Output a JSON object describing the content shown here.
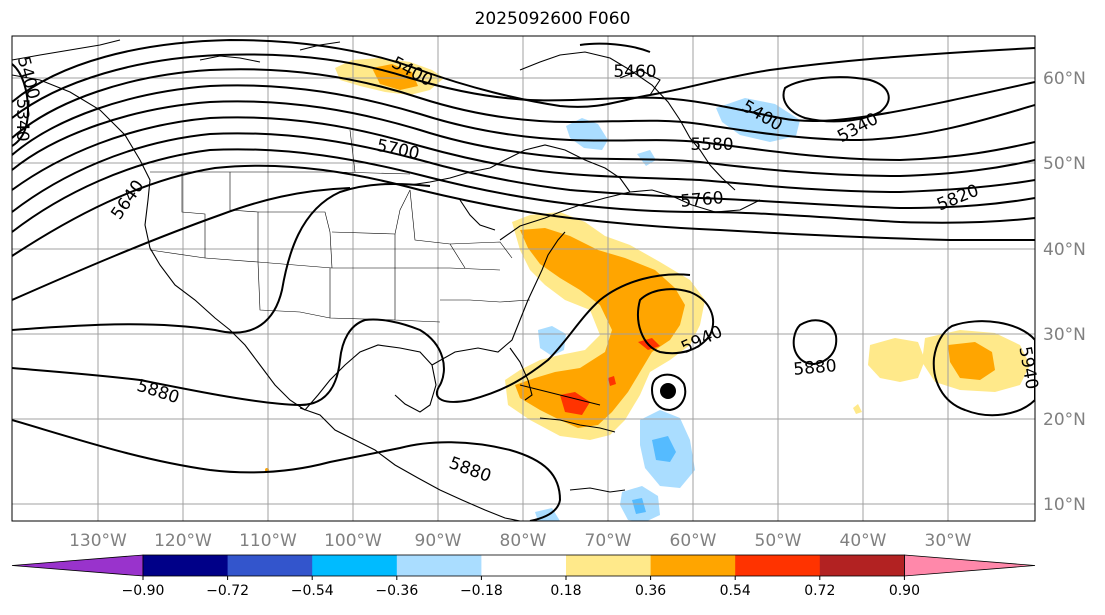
{
  "title": "2025092600 F060",
  "longitude_labels": [
    "130°W",
    "120°W",
    "110°W",
    "100°W",
    "90°W",
    "80°W",
    "70°W",
    "60°W",
    "50°W",
    "40°W",
    "30°W"
  ],
  "latitude_labels": [
    "60°N",
    "50°N",
    "40°N",
    "30°N",
    "20°N",
    "10°N"
  ],
  "colorbar": {
    "colors": [
      "#9933cc",
      "#000088",
      "#3355cc",
      "#00bbff",
      "#aaddff",
      "#ffffff",
      "#ffe98a",
      "#ffa500",
      "#ff3300",
      "#b22222",
      "#ff88aa"
    ],
    "tick_labels": [
      "−0.90",
      "−0.72",
      "−0.54",
      "−0.36",
      "−0.18",
      "0.18",
      "0.36",
      "0.54",
      "0.72",
      "0.90"
    ]
  },
  "contour_labels": [
    "5400",
    "5460",
    "5400",
    "5340",
    "5700",
    "5580",
    "5760",
    "5820",
    "5640",
    "5340",
    "5400",
    "5940",
    "5880",
    "5880",
    "5880",
    "5940"
  ],
  "colors": {
    "grid": "#a0a0a0",
    "contour": "#000000",
    "warm_light": "#ffe98a",
    "warm_mid": "#ffa500",
    "warm_high": "#ff3300",
    "cool_light": "#aaddff",
    "cool_mid": "#55bbff",
    "cool_dark": "#00bbff"
  }
}
